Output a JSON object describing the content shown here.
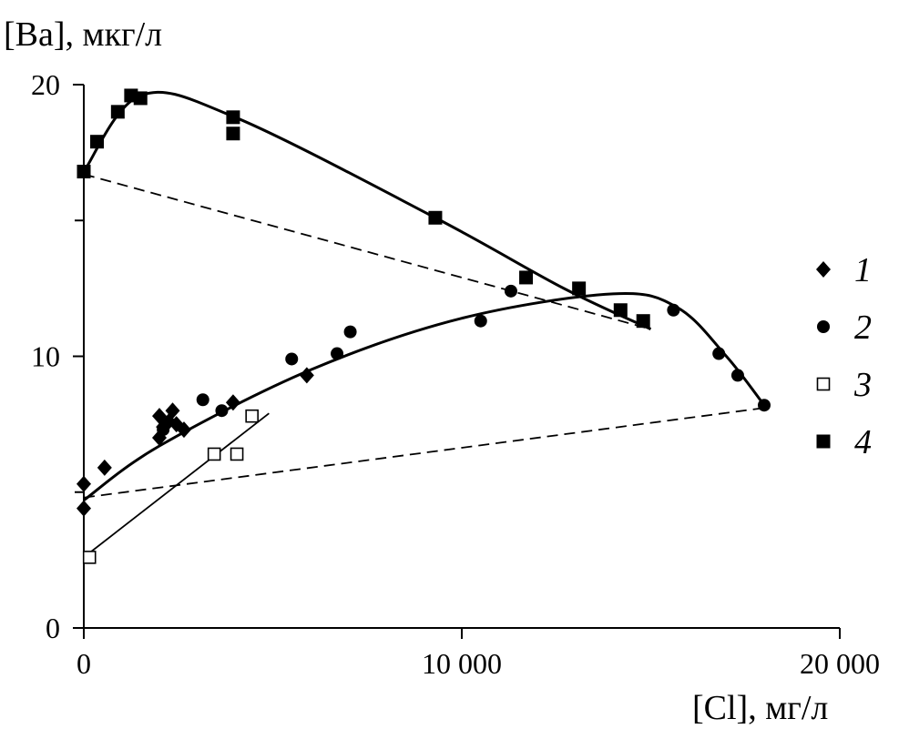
{
  "chart_data": {
    "type": "scatter",
    "ylabel": "[Ba], мкг/л",
    "xlabel": "[Cl], мг/л",
    "xlim": [
      0,
      20000
    ],
    "ylim": [
      0,
      20
    ],
    "xticks": [
      {
        "value": 0,
        "label": "0"
      },
      {
        "value": 10000,
        "label": "10 000"
      },
      {
        "value": 20000,
        "label": "20 000"
      }
    ],
    "yticks": [
      {
        "value": 0,
        "label": "0"
      },
      {
        "value": 10,
        "label": "10"
      },
      {
        "value": 20,
        "label": "20"
      }
    ],
    "y_minor_ticks": [
      5,
      15
    ],
    "grid": false,
    "legend_position": "right",
    "series": [
      {
        "name": "1",
        "marker": "diamond-filled",
        "points": [
          [
            0,
            5.3
          ],
          [
            0,
            4.4
          ],
          [
            550,
            5.9
          ],
          [
            2000,
            7.8
          ],
          [
            2000,
            7.0
          ],
          [
            2100,
            7.4
          ],
          [
            2250,
            7.6
          ],
          [
            2350,
            8.0
          ],
          [
            2450,
            7.5
          ],
          [
            2650,
            7.3
          ],
          [
            3950,
            8.3
          ],
          [
            5900,
            9.3
          ]
        ]
      },
      {
        "name": "2",
        "marker": "circle-filled",
        "points": [
          [
            2100,
            7.3
          ],
          [
            3150,
            8.4
          ],
          [
            3650,
            8.0
          ],
          [
            5500,
            9.9
          ],
          [
            6700,
            10.1
          ],
          [
            7050,
            10.9
          ],
          [
            10500,
            11.3
          ],
          [
            11300,
            12.4
          ],
          [
            15600,
            11.7
          ],
          [
            16800,
            10.1
          ],
          [
            17300,
            9.3
          ],
          [
            18000,
            8.2
          ]
        ]
      },
      {
        "name": "3",
        "marker": "square-open",
        "points": [
          [
            150,
            2.6
          ],
          [
            3450,
            6.4
          ],
          [
            4050,
            6.4
          ],
          [
            4450,
            7.8
          ]
        ]
      },
      {
        "name": "4",
        "marker": "square-filled",
        "points": [
          [
            0,
            16.8
          ],
          [
            350,
            17.9
          ],
          [
            900,
            19.0
          ],
          [
            1250,
            19.6
          ],
          [
            1500,
            19.5
          ],
          [
            3950,
            18.8
          ],
          [
            3950,
            18.2
          ],
          [
            9300,
            15.1
          ],
          [
            11700,
            12.9
          ],
          [
            13100,
            12.5
          ],
          [
            14200,
            11.7
          ],
          [
            14800,
            11.3
          ]
        ]
      }
    ],
    "trend_curves": [
      {
        "style": "solid-thick",
        "points": [
          [
            0,
            16.8
          ],
          [
            1500,
            19.6
          ],
          [
            4000,
            18.8
          ],
          [
            9300,
            15.1
          ],
          [
            12700,
            12.5
          ],
          [
            15000,
            11.0
          ]
        ]
      },
      {
        "style": "solid-thick",
        "points": [
          [
            0,
            4.7
          ],
          [
            2000,
            6.7
          ],
          [
            6000,
            9.5
          ],
          [
            10000,
            11.4
          ],
          [
            14000,
            12.3
          ],
          [
            15700,
            11.8
          ],
          [
            17000,
            10.0
          ],
          [
            18000,
            8.2
          ]
        ]
      },
      {
        "style": "solid-thin",
        "points": [
          [
            0,
            2.6
          ],
          [
            4900,
            7.9
          ]
        ]
      },
      {
        "style": "dashed",
        "points": [
          [
            0,
            16.7
          ],
          [
            15000,
            11.0
          ]
        ]
      },
      {
        "style": "dashed",
        "points": [
          [
            0,
            4.8
          ],
          [
            18000,
            8.1
          ]
        ]
      }
    ]
  }
}
